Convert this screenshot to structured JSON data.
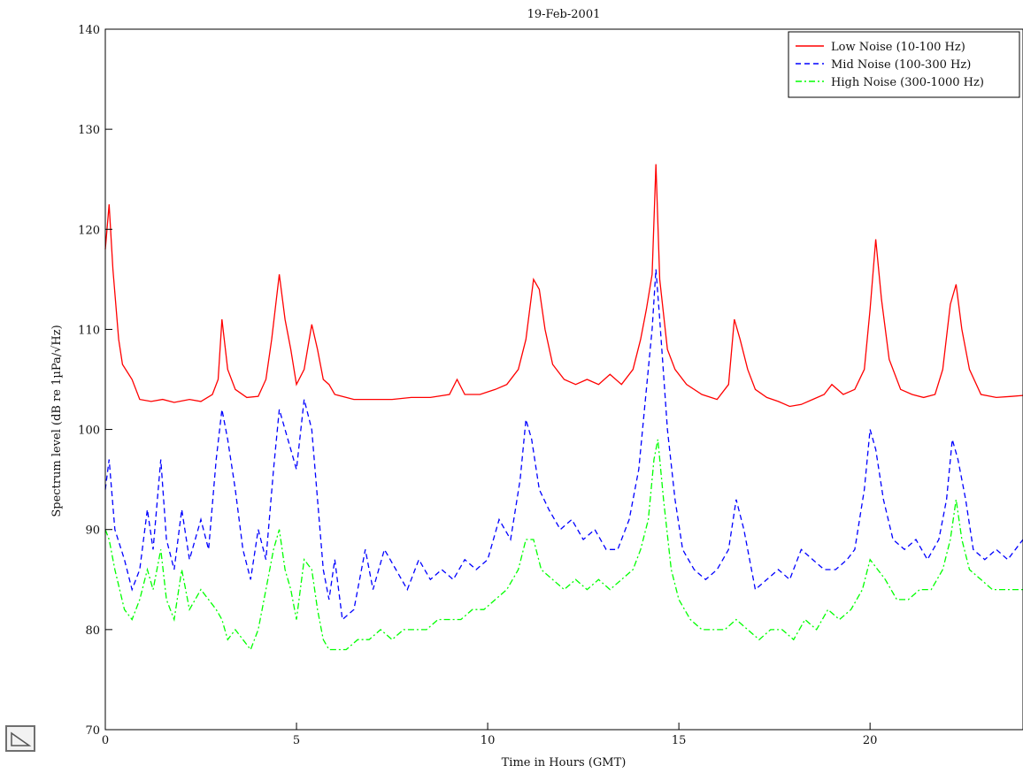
{
  "chart_data": {
    "type": "line",
    "title": "19-Feb-2001",
    "xlabel": "Time in Hours (GMT)",
    "ylabel": "Spectrum level (dB re 1µPa/√Hz)",
    "xlim": [
      0,
      24
    ],
    "ylim": [
      70,
      140
    ],
    "xticks": [
      0,
      5,
      10,
      15,
      20
    ],
    "yticks": [
      70,
      80,
      90,
      100,
      110,
      120,
      130,
      140
    ],
    "legend_position": "top-right",
    "grid": false,
    "series": [
      {
        "name": "Low Noise (10-100 Hz)",
        "color": "#ff0000",
        "style": "solid",
        "points": [
          [
            0,
            118
          ],
          [
            0.1,
            122.5
          ],
          [
            0.2,
            116
          ],
          [
            0.35,
            109
          ],
          [
            0.45,
            106.5
          ],
          [
            0.7,
            105
          ],
          [
            0.9,
            103
          ],
          [
            1.2,
            102.8
          ],
          [
            1.5,
            103
          ],
          [
            1.8,
            102.7
          ],
          [
            2.2,
            103
          ],
          [
            2.5,
            102.8
          ],
          [
            2.8,
            103.5
          ],
          [
            2.95,
            105
          ],
          [
            3.05,
            111
          ],
          [
            3.2,
            106
          ],
          [
            3.4,
            104
          ],
          [
            3.7,
            103.2
          ],
          [
            4.0,
            103.3
          ],
          [
            4.2,
            105
          ],
          [
            4.35,
            109
          ],
          [
            4.55,
            115.5
          ],
          [
            4.7,
            111
          ],
          [
            4.85,
            108
          ],
          [
            5.0,
            104.5
          ],
          [
            5.2,
            106
          ],
          [
            5.4,
            110.5
          ],
          [
            5.55,
            108
          ],
          [
            5.7,
            105
          ],
          [
            5.85,
            104.5
          ],
          [
            6.0,
            103.5
          ],
          [
            6.5,
            103
          ],
          [
            7.0,
            103
          ],
          [
            7.5,
            103
          ],
          [
            8.0,
            103.2
          ],
          [
            8.5,
            103.2
          ],
          [
            9.0,
            103.5
          ],
          [
            9.2,
            105
          ],
          [
            9.4,
            103.5
          ],
          [
            9.8,
            103.5
          ],
          [
            10.2,
            104
          ],
          [
            10.5,
            104.5
          ],
          [
            10.8,
            106
          ],
          [
            11.0,
            109
          ],
          [
            11.2,
            115
          ],
          [
            11.35,
            114
          ],
          [
            11.5,
            110
          ],
          [
            11.7,
            106.5
          ],
          [
            12.0,
            105
          ],
          [
            12.3,
            104.5
          ],
          [
            12.6,
            105
          ],
          [
            12.9,
            104.5
          ],
          [
            13.2,
            105.5
          ],
          [
            13.5,
            104.5
          ],
          [
            13.8,
            106
          ],
          [
            14.0,
            109
          ],
          [
            14.15,
            112
          ],
          [
            14.3,
            115.5
          ],
          [
            14.4,
            126.5
          ],
          [
            14.5,
            115
          ],
          [
            14.7,
            108
          ],
          [
            14.9,
            106
          ],
          [
            15.2,
            104.5
          ],
          [
            15.6,
            103.5
          ],
          [
            16.0,
            103
          ],
          [
            16.3,
            104.5
          ],
          [
            16.45,
            111
          ],
          [
            16.6,
            109
          ],
          [
            16.8,
            106
          ],
          [
            17.0,
            104
          ],
          [
            17.3,
            103.2
          ],
          [
            17.6,
            102.8
          ],
          [
            17.9,
            102.3
          ],
          [
            18.2,
            102.5
          ],
          [
            18.5,
            103
          ],
          [
            18.8,
            103.5
          ],
          [
            19.0,
            104.5
          ],
          [
            19.3,
            103.5
          ],
          [
            19.6,
            104
          ],
          [
            19.85,
            106
          ],
          [
            20.0,
            112
          ],
          [
            20.15,
            119
          ],
          [
            20.3,
            113
          ],
          [
            20.5,
            107
          ],
          [
            20.8,
            104
          ],
          [
            21.1,
            103.5
          ],
          [
            21.4,
            103.2
          ],
          [
            21.7,
            103.5
          ],
          [
            21.9,
            106
          ],
          [
            22.1,
            112.5
          ],
          [
            22.25,
            114.5
          ],
          [
            22.4,
            110
          ],
          [
            22.6,
            106
          ],
          [
            22.9,
            103.5
          ],
          [
            23.3,
            103.2
          ],
          [
            23.7,
            103.3
          ],
          [
            24,
            103.4
          ]
        ]
      },
      {
        "name": "Mid Noise (100-300 Hz)",
        "color": "#0000ff",
        "style": "dashed",
        "points": [
          [
            0,
            94
          ],
          [
            0.1,
            97
          ],
          [
            0.25,
            90
          ],
          [
            0.5,
            87
          ],
          [
            0.7,
            84
          ],
          [
            0.9,
            86
          ],
          [
            1.1,
            92
          ],
          [
            1.25,
            88
          ],
          [
            1.45,
            97
          ],
          [
            1.6,
            89
          ],
          [
            1.8,
            86
          ],
          [
            2.0,
            92
          ],
          [
            2.2,
            87
          ],
          [
            2.5,
            91
          ],
          [
            2.7,
            88
          ],
          [
            2.9,
            97
          ],
          [
            3.05,
            102
          ],
          [
            3.2,
            99
          ],
          [
            3.4,
            94
          ],
          [
            3.6,
            88
          ],
          [
            3.8,
            85
          ],
          [
            4.0,
            90
          ],
          [
            4.2,
            87
          ],
          [
            4.4,
            96
          ],
          [
            4.55,
            102
          ],
          [
            4.7,
            100
          ],
          [
            4.85,
            98
          ],
          [
            5.0,
            96
          ],
          [
            5.2,
            103
          ],
          [
            5.4,
            100
          ],
          [
            5.55,
            93
          ],
          [
            5.7,
            86
          ],
          [
            5.85,
            83
          ],
          [
            6.0,
            87
          ],
          [
            6.2,
            81
          ],
          [
            6.5,
            82
          ],
          [
            6.8,
            88
          ],
          [
            7.0,
            84
          ],
          [
            7.3,
            88
          ],
          [
            7.6,
            86
          ],
          [
            7.9,
            84
          ],
          [
            8.2,
            87
          ],
          [
            8.5,
            85
          ],
          [
            8.8,
            86
          ],
          [
            9.1,
            85
          ],
          [
            9.4,
            87
          ],
          [
            9.7,
            86
          ],
          [
            10.0,
            87
          ],
          [
            10.3,
            91
          ],
          [
            10.6,
            89
          ],
          [
            10.85,
            95
          ],
          [
            11.0,
            101
          ],
          [
            11.15,
            99
          ],
          [
            11.35,
            94
          ],
          [
            11.6,
            92
          ],
          [
            11.9,
            90
          ],
          [
            12.2,
            91
          ],
          [
            12.5,
            89
          ],
          [
            12.8,
            90
          ],
          [
            13.1,
            88
          ],
          [
            13.4,
            88
          ],
          [
            13.7,
            91
          ],
          [
            13.95,
            96
          ],
          [
            14.15,
            104
          ],
          [
            14.3,
            110
          ],
          [
            14.4,
            116
          ],
          [
            14.5,
            111
          ],
          [
            14.7,
            100
          ],
          [
            14.9,
            93
          ],
          [
            15.1,
            88
          ],
          [
            15.4,
            86
          ],
          [
            15.7,
            85
          ],
          [
            16.0,
            86
          ],
          [
            16.3,
            88
          ],
          [
            16.5,
            93
          ],
          [
            16.7,
            90
          ],
          [
            17.0,
            84
          ],
          [
            17.3,
            85
          ],
          [
            17.6,
            86
          ],
          [
            17.9,
            85
          ],
          [
            18.2,
            88
          ],
          [
            18.5,
            87
          ],
          [
            18.8,
            86
          ],
          [
            19.1,
            86
          ],
          [
            19.4,
            87
          ],
          [
            19.6,
            88
          ],
          [
            19.85,
            94
          ],
          [
            20.0,
            100
          ],
          [
            20.15,
            98
          ],
          [
            20.35,
            93
          ],
          [
            20.6,
            89
          ],
          [
            20.9,
            88
          ],
          [
            21.2,
            89
          ],
          [
            21.5,
            87
          ],
          [
            21.8,
            89
          ],
          [
            22.0,
            93
          ],
          [
            22.15,
            99
          ],
          [
            22.3,
            97
          ],
          [
            22.5,
            93
          ],
          [
            22.7,
            88
          ],
          [
            23.0,
            87
          ],
          [
            23.3,
            88
          ],
          [
            23.6,
            87
          ],
          [
            23.8,
            88
          ],
          [
            24,
            89
          ]
        ]
      },
      {
        "name": "High Noise (300-1000 Hz)",
        "color": "#00ff00",
        "style": "dashdot",
        "points": [
          [
            0,
            90
          ],
          [
            0.1,
            89
          ],
          [
            0.25,
            86
          ],
          [
            0.5,
            82
          ],
          [
            0.7,
            81
          ],
          [
            0.9,
            83
          ],
          [
            1.1,
            86
          ],
          [
            1.25,
            84
          ],
          [
            1.45,
            88
          ],
          [
            1.6,
            83
          ],
          [
            1.8,
            81
          ],
          [
            2.0,
            86
          ],
          [
            2.2,
            82
          ],
          [
            2.5,
            84
          ],
          [
            2.7,
            83
          ],
          [
            2.9,
            82
          ],
          [
            3.05,
            81
          ],
          [
            3.2,
            79
          ],
          [
            3.4,
            80
          ],
          [
            3.6,
            79
          ],
          [
            3.8,
            78
          ],
          [
            4.0,
            80
          ],
          [
            4.2,
            84
          ],
          [
            4.4,
            88
          ],
          [
            4.55,
            90
          ],
          [
            4.7,
            86
          ],
          [
            4.85,
            84
          ],
          [
            5.0,
            81
          ],
          [
            5.2,
            87
          ],
          [
            5.4,
            86
          ],
          [
            5.55,
            82
          ],
          [
            5.7,
            79
          ],
          [
            5.85,
            78
          ],
          [
            6.0,
            78
          ],
          [
            6.3,
            78
          ],
          [
            6.6,
            79
          ],
          [
            6.9,
            79
          ],
          [
            7.2,
            80
          ],
          [
            7.5,
            79
          ],
          [
            7.8,
            80
          ],
          [
            8.1,
            80
          ],
          [
            8.4,
            80
          ],
          [
            8.7,
            81
          ],
          [
            9.0,
            81
          ],
          [
            9.3,
            81
          ],
          [
            9.6,
            82
          ],
          [
            9.9,
            82
          ],
          [
            10.2,
            83
          ],
          [
            10.5,
            84
          ],
          [
            10.8,
            86
          ],
          [
            11.0,
            89
          ],
          [
            11.2,
            89
          ],
          [
            11.4,
            86
          ],
          [
            11.7,
            85
          ],
          [
            12.0,
            84
          ],
          [
            12.3,
            85
          ],
          [
            12.6,
            84
          ],
          [
            12.9,
            85
          ],
          [
            13.2,
            84
          ],
          [
            13.5,
            85
          ],
          [
            13.8,
            86
          ],
          [
            14.0,
            88
          ],
          [
            14.2,
            91
          ],
          [
            14.35,
            97
          ],
          [
            14.45,
            99
          ],
          [
            14.6,
            93
          ],
          [
            14.8,
            86
          ],
          [
            15.0,
            83
          ],
          [
            15.3,
            81
          ],
          [
            15.6,
            80
          ],
          [
            15.9,
            80
          ],
          [
            16.2,
            80
          ],
          [
            16.5,
            81
          ],
          [
            16.8,
            80
          ],
          [
            17.1,
            79
          ],
          [
            17.4,
            80
          ],
          [
            17.7,
            80
          ],
          [
            18.0,
            79
          ],
          [
            18.3,
            81
          ],
          [
            18.6,
            80
          ],
          [
            18.9,
            82
          ],
          [
            19.2,
            81
          ],
          [
            19.5,
            82
          ],
          [
            19.8,
            84
          ],
          [
            20.0,
            87
          ],
          [
            20.2,
            86
          ],
          [
            20.4,
            85
          ],
          [
            20.7,
            83
          ],
          [
            21.0,
            83
          ],
          [
            21.3,
            84
          ],
          [
            21.6,
            84
          ],
          [
            21.9,
            86
          ],
          [
            22.1,
            89
          ],
          [
            22.25,
            93
          ],
          [
            22.4,
            89
          ],
          [
            22.6,
            86
          ],
          [
            22.9,
            85
          ],
          [
            23.2,
            84
          ],
          [
            23.5,
            84
          ],
          [
            23.8,
            84
          ],
          [
            24,
            84
          ]
        ]
      }
    ]
  },
  "ui": {
    "corner_button": "resize-corner-icon"
  }
}
